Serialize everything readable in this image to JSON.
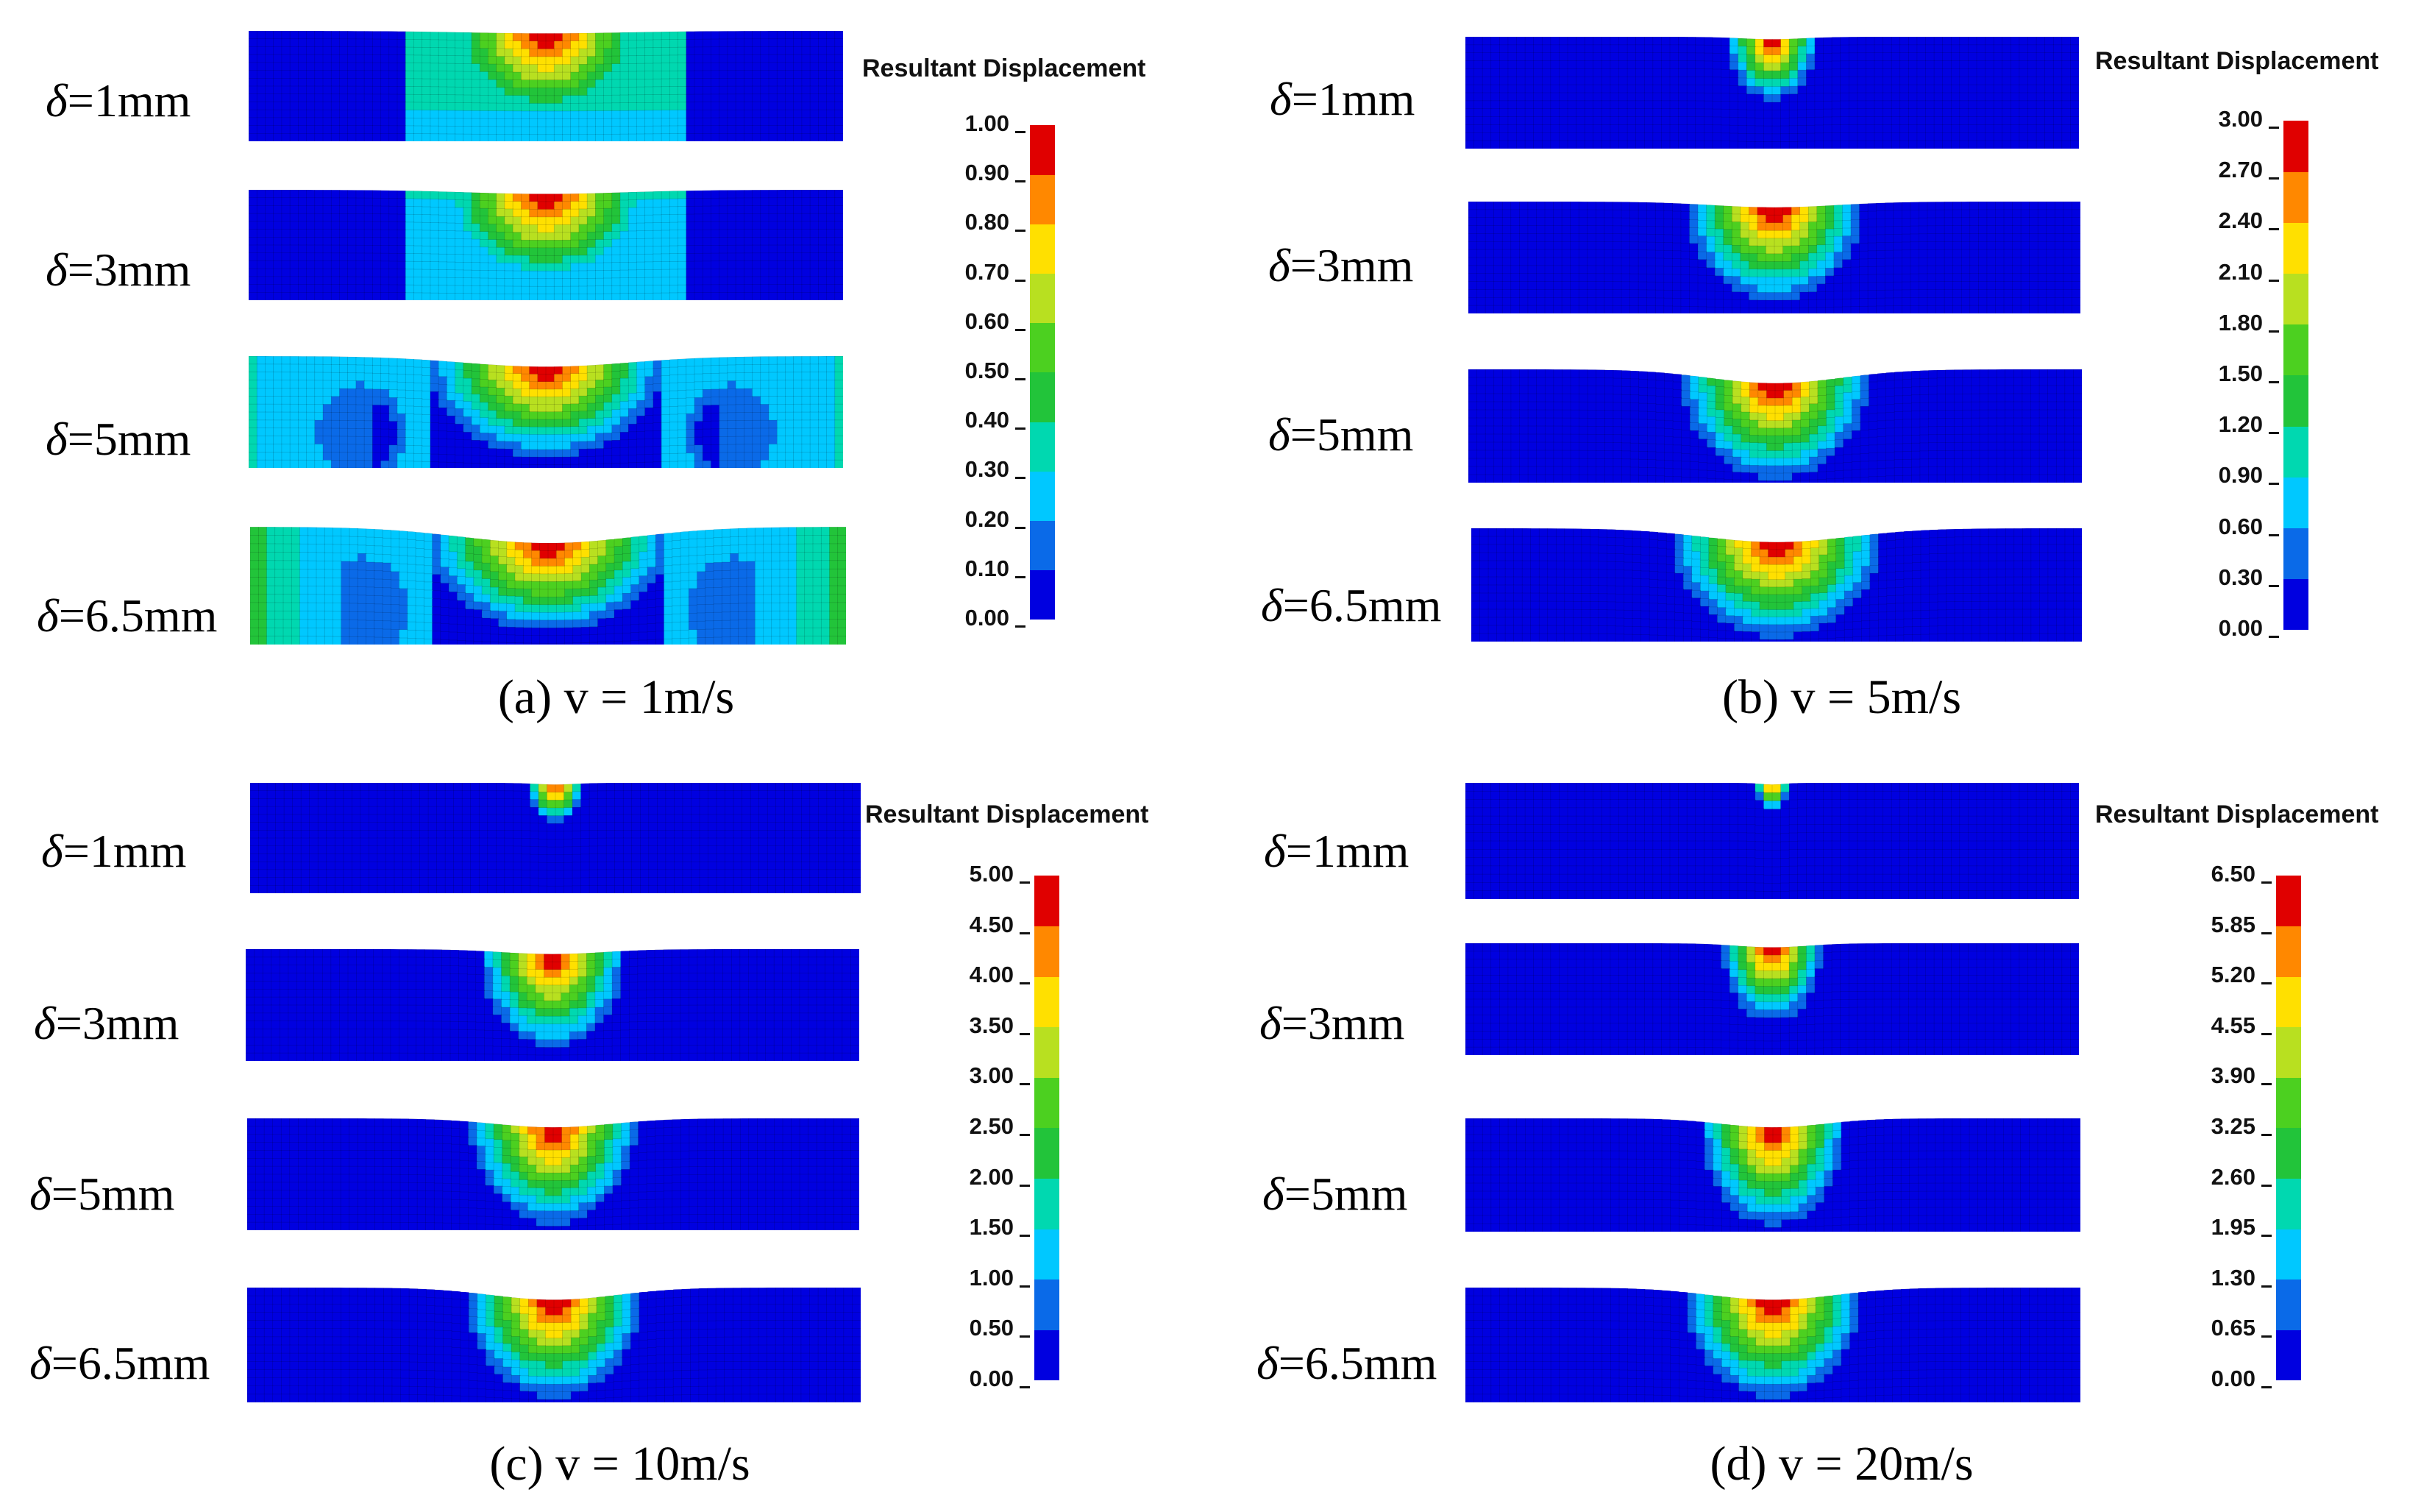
{
  "colorbar_colors": [
    "#0000e0",
    "#0a6ae8",
    "#00c8ff",
    "#00d8b0",
    "#22c43a",
    "#4cd020",
    "#b8e020",
    "#ffe000",
    "#ff8800",
    "#e00000"
  ],
  "panels": [
    {
      "id": "a",
      "caption": "(a) v = 1m/s",
      "legend_title": "Resultant Displacement",
      "ticks": [
        "1.00",
        "0.90",
        "0.80",
        "0.70",
        "0.60",
        "0.50",
        "0.40",
        "0.30",
        "0.20",
        "0.10",
        "0.00"
      ],
      "rows": [
        {
          "label_symbol": "δ",
          "label_value": "=1mm"
        },
        {
          "label_symbol": "δ",
          "label_value": "=3mm"
        },
        {
          "label_symbol": "δ",
          "label_value": "=5mm"
        },
        {
          "label_symbol": "δ",
          "label_value": "=6.5mm"
        }
      ]
    },
    {
      "id": "b",
      "caption": "(b) v = 5m/s",
      "legend_title": "Resultant Displacement",
      "ticks": [
        "3.00",
        "2.70",
        "2.40",
        "2.10",
        "1.80",
        "1.50",
        "1.20",
        "0.90",
        "0.60",
        "0.30",
        "0.00"
      ],
      "rows": [
        {
          "label_symbol": "δ",
          "label_value": "=1mm"
        },
        {
          "label_symbol": "δ",
          "label_value": "=3mm"
        },
        {
          "label_symbol": "δ",
          "label_value": "=5mm"
        },
        {
          "label_symbol": "δ",
          "label_value": "=6.5mm"
        }
      ]
    },
    {
      "id": "c",
      "caption": "(c) v = 10m/s",
      "legend_title": "Resultant Displacement",
      "ticks": [
        "5.00",
        "4.50",
        "4.00",
        "3.50",
        "3.00",
        "2.50",
        "2.00",
        "1.50",
        "1.00",
        "0.50",
        "0.00"
      ],
      "rows": [
        {
          "label_symbol": "δ",
          "label_value": "=1mm"
        },
        {
          "label_symbol": "δ",
          "label_value": "=3mm"
        },
        {
          "label_symbol": "δ",
          "label_value": "=5mm"
        },
        {
          "label_symbol": "δ",
          "label_value": "=6.5mm"
        }
      ]
    },
    {
      "id": "d",
      "caption": "(d) v = 20m/s",
      "legend_title": "Resultant Displacement",
      "ticks": [
        "6.50",
        "5.85",
        "5.20",
        "4.55",
        "3.90",
        "3.25",
        "2.60",
        "1.95",
        "1.30",
        "0.65",
        "0.00"
      ],
      "rows": [
        {
          "label_symbol": "δ",
          "label_value": "=1mm"
        },
        {
          "label_symbol": "δ",
          "label_value": "=3mm"
        },
        {
          "label_symbol": "δ",
          "label_value": "=5mm"
        },
        {
          "label_symbol": "δ",
          "label_value": "=6.5mm"
        }
      ]
    }
  ]
}
